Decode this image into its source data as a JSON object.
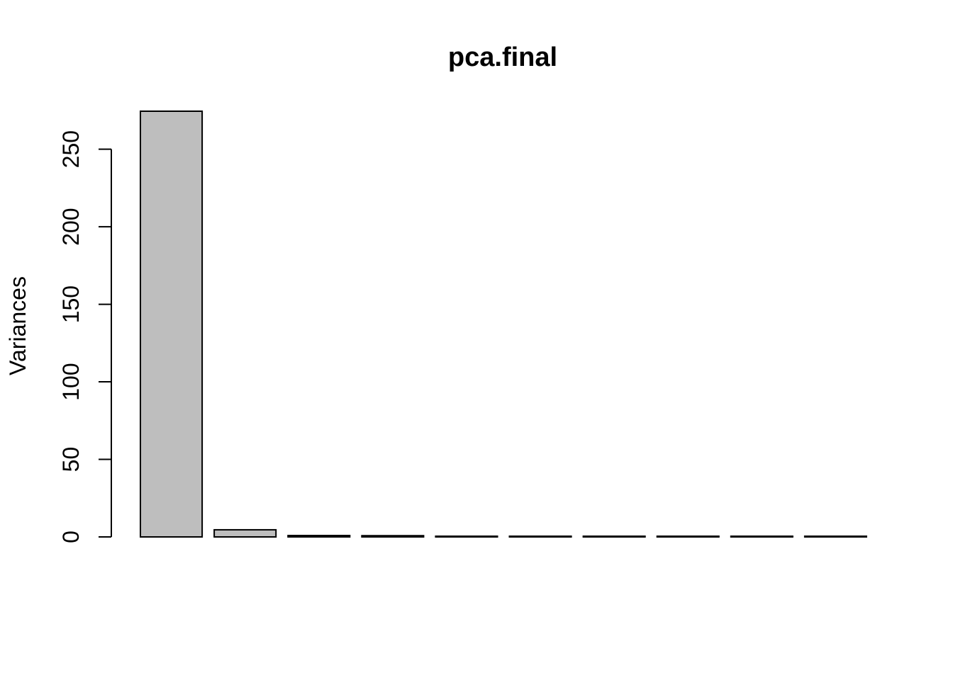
{
  "chart_data": {
    "type": "bar",
    "title": "pca.final",
    "xlabel": "",
    "ylabel": "Variances",
    "categories": [
      "",
      "",
      "",
      "",
      "",
      "",
      "",
      "",
      "",
      ""
    ],
    "values": [
      274.5,
      4.6,
      0.9,
      0.8,
      0.3,
      0.25,
      0.2,
      0.15,
      0.12,
      0.1
    ],
    "ylim": [
      0,
      274.5
    ],
    "yticks": [
      0,
      50,
      100,
      150,
      200,
      250
    ],
    "bar_color": "#bebebe",
    "border_color": "#000000",
    "grid": false,
    "legend": "none"
  }
}
